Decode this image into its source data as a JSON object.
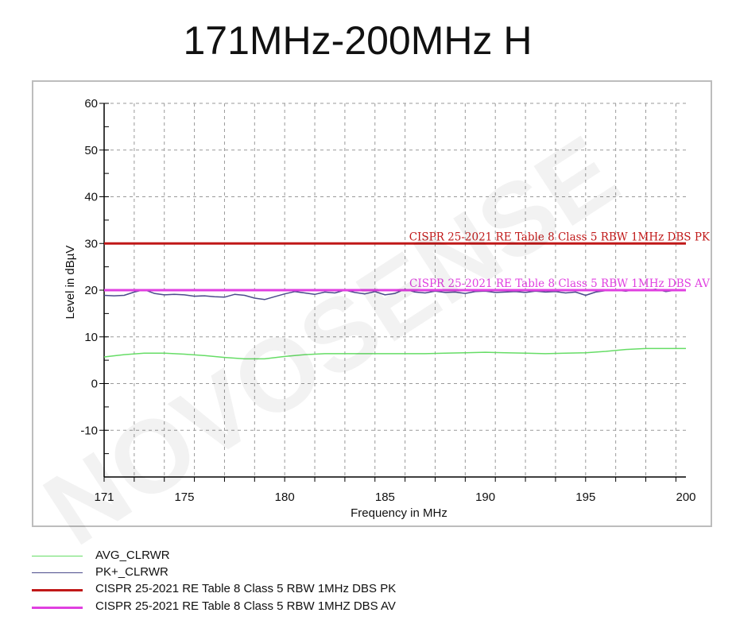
{
  "title": "171MHz-200MHz H",
  "watermark": "NOVOSENSE",
  "chart_data": {
    "type": "line",
    "xlabel": "Frequency in MHz",
    "ylabel": "Level in dBµV",
    "xlim": [
      171,
      200
    ],
    "ylim": [
      -20,
      60
    ],
    "x_ticks": [
      171,
      175,
      180,
      185,
      190,
      195,
      200
    ],
    "y_ticks": [
      -10,
      0,
      10,
      20,
      30,
      40,
      50,
      60
    ],
    "grid": true,
    "legend_position": "bottom",
    "series": [
      {
        "name": "AVG_CLRWR",
        "color": "#66dd66",
        "x": [
          171,
          172,
          173,
          174,
          175,
          176,
          177,
          178,
          179,
          180,
          181,
          182,
          183,
          184,
          185,
          186,
          187,
          188,
          189,
          190,
          191,
          192,
          193,
          194,
          195,
          196,
          197,
          198,
          199,
          200
        ],
        "y": [
          5.7,
          6.2,
          6.5,
          6.5,
          6.3,
          6.0,
          5.6,
          5.3,
          5.3,
          5.8,
          6.2,
          6.4,
          6.4,
          6.4,
          6.4,
          6.4,
          6.4,
          6.5,
          6.6,
          6.7,
          6.6,
          6.5,
          6.4,
          6.5,
          6.6,
          6.9,
          7.3,
          7.5,
          7.5,
          7.5
        ]
      },
      {
        "name": "PK+_CLRWR",
        "color": "#4b4b8c",
        "x": [
          171,
          171.5,
          172,
          172.5,
          173,
          173.5,
          174,
          174.5,
          175,
          175.5,
          176,
          176.5,
          177,
          177.5,
          178,
          178.5,
          179,
          179.5,
          180,
          180.5,
          181,
          181.5,
          182,
          182.5,
          183,
          183.5,
          184,
          184.5,
          185,
          185.5,
          186,
          186.5,
          187,
          187.5,
          188,
          188.5,
          189,
          189.5,
          190,
          190.5,
          191,
          191.5,
          192,
          192.5,
          193,
          193.5,
          194,
          194.5,
          195,
          195.5,
          196,
          196.5,
          197,
          197.5,
          198,
          198.5,
          199,
          199.5,
          200
        ],
        "y": [
          18.9,
          18.8,
          18.9,
          19.6,
          20.1,
          19.3,
          19.0,
          19.1,
          19.0,
          18.7,
          18.8,
          18.6,
          18.5,
          19.1,
          18.9,
          18.3,
          18.0,
          18.6,
          19.2,
          19.7,
          19.4,
          19.1,
          19.6,
          19.4,
          20.0,
          19.5,
          19.2,
          19.7,
          19.0,
          19.3,
          20.2,
          19.6,
          19.4,
          19.8,
          19.5,
          19.6,
          19.3,
          19.7,
          19.8,
          19.5,
          19.6,
          19.7,
          19.5,
          19.8,
          19.6,
          19.7,
          19.4,
          19.6,
          18.9,
          19.6,
          19.9,
          20.0,
          19.8,
          20.1,
          19.9,
          20.2,
          19.7,
          20.0,
          20.1
        ]
      },
      {
        "name": "CISPR 25-2021 RE Table 8 Class 5 RBW 1MHz DBS PK",
        "color": "#c01818",
        "x": [
          171,
          200
        ],
        "y": [
          30,
          30
        ]
      },
      {
        "name": "CISPR 25-2021 RE Table 8 Class 5 RBW 1MHZ DBS AV",
        "color": "#e040e0",
        "x": [
          171,
          200
        ],
        "y": [
          20,
          20
        ]
      }
    ],
    "annotations": [
      {
        "text": "CISPR 25-2021 RE Table 8 Class 5 RBW 1MHz DBS PK",
        "color": "#c01818",
        "x": 200,
        "y": 30
      },
      {
        "text": "CISPR 25-2021 RE Table 8 Class 5 RBW 1MHz DBS AV",
        "color": "#e040e0",
        "x": 200,
        "y": 20
      }
    ]
  }
}
